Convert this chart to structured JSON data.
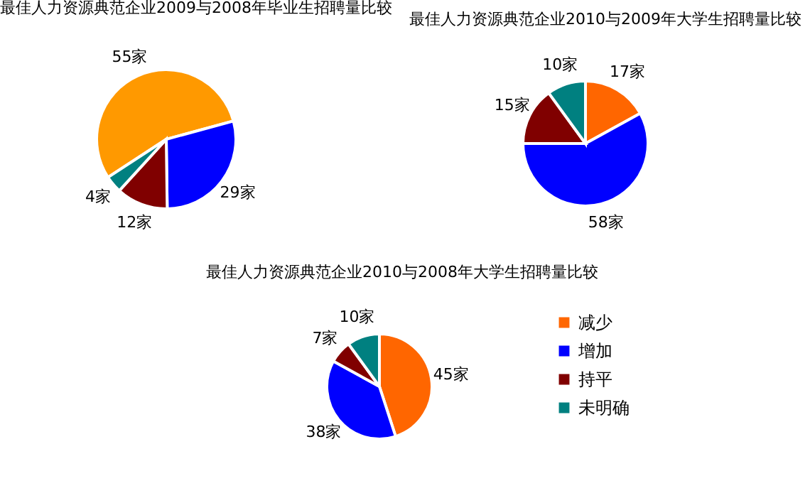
{
  "chart_data": [
    {
      "type": "pie",
      "title": "最佳人力资源典范企业2009与2008年毕业生招聘量比较",
      "categories": [
        null,
        null,
        null,
        null
      ],
      "values": [
        55,
        29,
        12,
        4
      ],
      "colors": [
        "#ff9900",
        "#0000ff",
        "#800000",
        "#008080"
      ],
      "value_labels": [
        "55家",
        "29家",
        "12家",
        "4家"
      ],
      "legend": false
    },
    {
      "type": "pie",
      "title": "最佳人力资源典范企业2010与2009年大学生招聘量比较",
      "categories": [
        null,
        null,
        null,
        null
      ],
      "values": [
        17,
        58,
        15,
        10
      ],
      "colors": [
        "#ff6600",
        "#0000ff",
        "#800000",
        "#008080"
      ],
      "value_labels": [
        "17家",
        "58家",
        "15家",
        "10家"
      ],
      "legend": false
    },
    {
      "type": "pie",
      "title": "最佳人力资源典范企业2010与2008年大学生招聘量比较",
      "categories": [
        "减少",
        "增加",
        "持平",
        "未明确"
      ],
      "values": [
        45,
        38,
        7,
        10
      ],
      "colors": [
        "#ff6600",
        "#0000ff",
        "#800000",
        "#008080"
      ],
      "value_labels": [
        "45家",
        "38家",
        "7家",
        "10家"
      ],
      "legend": "right"
    }
  ]
}
